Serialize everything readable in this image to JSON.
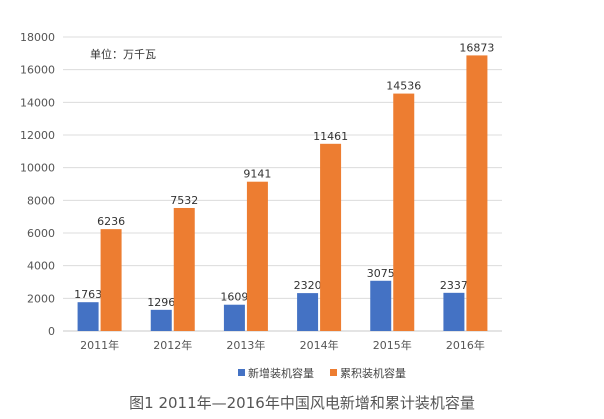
{
  "chart_data": {
    "type": "bar",
    "title": "图1 2011年—2016年中国风电新增和累计装机容量",
    "unit_note": "单位：万千瓦",
    "xlabel": "",
    "ylabel": "",
    "categories": [
      "2011年",
      "2012年",
      "2013年",
      "2014年",
      "2015年",
      "2016年"
    ],
    "series": [
      {
        "name": "新增装机容量",
        "color": "#4472c4",
        "values": [
          1763,
          1296,
          1609,
          2320,
          3075,
          2337
        ]
      },
      {
        "name": "累积装机容量",
        "color": "#ed7d31",
        "values": [
          6236,
          7532,
          9141,
          11461,
          14536,
          16873
        ]
      }
    ],
    "ylim": [
      0,
      18000
    ],
    "yticks": [
      0,
      2000,
      4000,
      6000,
      8000,
      10000,
      12000,
      14000,
      16000,
      18000
    ],
    "grid": true,
    "legend": "bottom"
  }
}
